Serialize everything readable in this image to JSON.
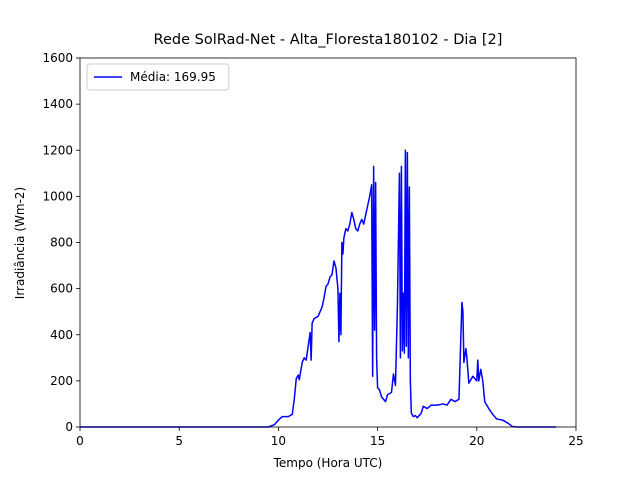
{
  "chart_data": {
    "type": "line",
    "title": "Rede SolRad-Net - Alta_Floresta180102 - Dia [2]",
    "x_label": "Tempo (Hora UTC)",
    "y_label": "Irradiância (Wm-2)",
    "x": [
      0,
      9.5,
      9.8,
      10.0,
      10.2,
      10.5,
      10.7,
      10.8,
      10.9,
      11.0,
      11.05,
      11.2,
      11.3,
      11.4,
      11.5,
      11.6,
      11.65,
      11.7,
      11.8,
      12.0,
      12.2,
      12.3,
      12.4,
      12.5,
      12.6,
      12.7,
      12.8,
      12.9,
      13.0,
      13.05,
      13.1,
      13.15,
      13.2,
      13.25,
      13.3,
      13.4,
      13.5,
      13.6,
      13.7,
      13.8,
      13.9,
      14.0,
      14.1,
      14.2,
      14.3,
      14.4,
      14.5,
      14.6,
      14.7,
      14.75,
      14.8,
      14.85,
      14.9,
      14.95,
      15.0,
      15.1,
      15.2,
      15.4,
      15.5,
      15.7,
      15.8,
      15.9,
      16.0,
      16.1,
      16.15,
      16.2,
      16.25,
      16.3,
      16.35,
      16.4,
      16.45,
      16.5,
      16.55,
      16.6,
      16.65,
      16.7,
      16.8,
      16.9,
      17.0,
      17.2,
      17.3,
      17.5,
      17.7,
      18.0,
      18.3,
      18.5,
      18.7,
      18.9,
      19.1,
      19.2,
      19.25,
      19.3,
      19.35,
      19.45,
      19.5,
      19.6,
      19.8,
      20.0,
      20.05,
      20.1,
      20.2,
      20.3,
      20.4,
      20.6,
      20.8,
      21.0,
      21.3,
      21.6,
      21.8,
      22.0,
      24.0
    ],
    "series": [
      {
        "name": "Média: 169.95",
        "color": "#0000ff",
        "values": [
          0,
          0,
          10,
          30,
          45,
          45,
          55,
          120,
          210,
          225,
          205,
          280,
          300,
          290,
          350,
          410,
          290,
          450,
          470,
          480,
          520,
          560,
          610,
          620,
          650,
          660,
          720,
          690,
          600,
          370,
          580,
          400,
          800,
          750,
          820,
          860,
          850,
          880,
          930,
          900,
          860,
          850,
          880,
          900,
          880,
          920,
          960,
          1000,
          1050,
          220,
          1130,
          420,
          1060,
          300,
          170,
          160,
          130,
          110,
          140,
          150,
          230,
          180,
          530,
          1100,
          300,
          1130,
          330,
          580,
          320,
          1200,
          350,
          1190,
          300,
          1040,
          200,
          60,
          45,
          50,
          40,
          60,
          90,
          80,
          95,
          95,
          100,
          95,
          120,
          110,
          120,
          400,
          540,
          500,
          280,
          340,
          300,
          190,
          220,
          200,
          290,
          200,
          250,
          200,
          110,
          80,
          55,
          35,
          30,
          15,
          2,
          0,
          0
        ]
      }
    ],
    "xlim": [
      0,
      25
    ],
    "xticks": [
      0,
      5,
      10,
      15,
      20,
      25
    ],
    "ylim": [
      0,
      1600
    ],
    "yticks": [
      0,
      200,
      400,
      600,
      800,
      1000,
      1200,
      1400,
      1600
    ],
    "legend": "upper left",
    "grid": false
  }
}
